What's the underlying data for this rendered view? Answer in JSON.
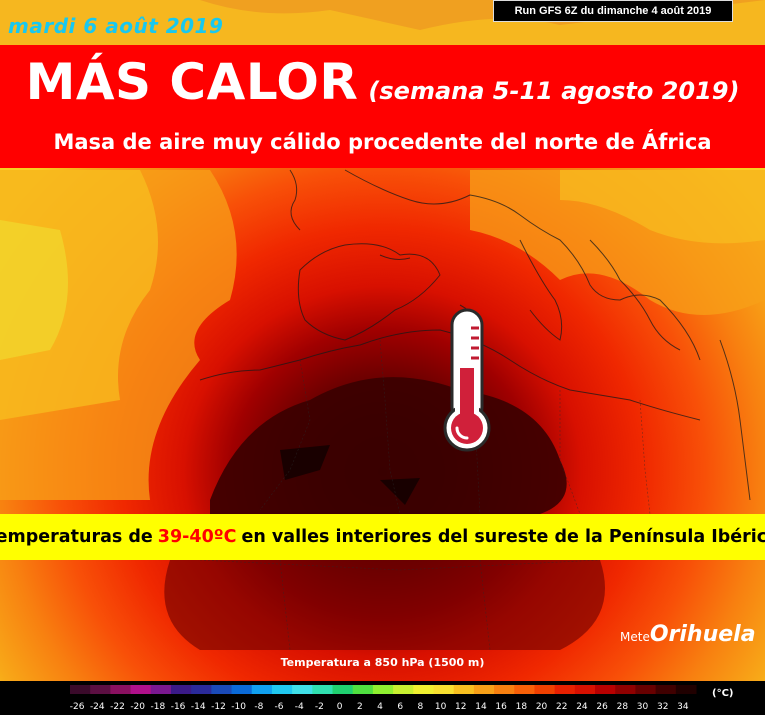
{
  "header": {
    "date_label": "mardi 6 août 2019",
    "run_label": "Run GFS 6Z du dimanche 4 août 2019"
  },
  "banner": {
    "title": "MÁS CALOR",
    "period": "(semana 5-11 agosto 2019)",
    "subtitle": "Masa de aire muy cálido procedente del norte de África",
    "color": "#ff0000"
  },
  "highlight": {
    "prefix": "Temperaturas de",
    "value": "39-40ºC",
    "suffix": "en valles interiores del sureste de la Península Ibérica",
    "band_color": "#ffff00"
  },
  "map": {
    "caption": "Temperatura a 850 hPa (1500 m)",
    "icon": "thermometer-icon"
  },
  "brand": {
    "prefix": "Mete",
    "name": "Orihuela"
  },
  "legend": {
    "unit": "(°C)",
    "ticks": [
      "-26",
      "-24",
      "-22",
      "-20",
      "-18",
      "-16",
      "-14",
      "-12",
      "-10",
      "-8",
      "-6",
      "-4",
      "-2",
      "0",
      "2",
      "4",
      "6",
      "8",
      "10",
      "12",
      "14",
      "16",
      "18",
      "20",
      "22",
      "24",
      "26",
      "28",
      "30",
      "32",
      "34"
    ],
    "colors": [
      "#3a0a2a",
      "#5c0f42",
      "#8a1060",
      "#b0108a",
      "#7a1890",
      "#3a1a88",
      "#2a2a9a",
      "#1a4ab8",
      "#0a6ad8",
      "#10a0f0",
      "#20c8f0",
      "#40e0e8",
      "#30e0b0",
      "#20d070",
      "#50e040",
      "#90f030",
      "#c8f030",
      "#f0f030",
      "#f8e030",
      "#f8c020",
      "#f8a018",
      "#f88010",
      "#f86008",
      "#f04000",
      "#e82000",
      "#d81000",
      "#b80000",
      "#900000",
      "#680000",
      "#400000",
      "#200000"
    ]
  }
}
